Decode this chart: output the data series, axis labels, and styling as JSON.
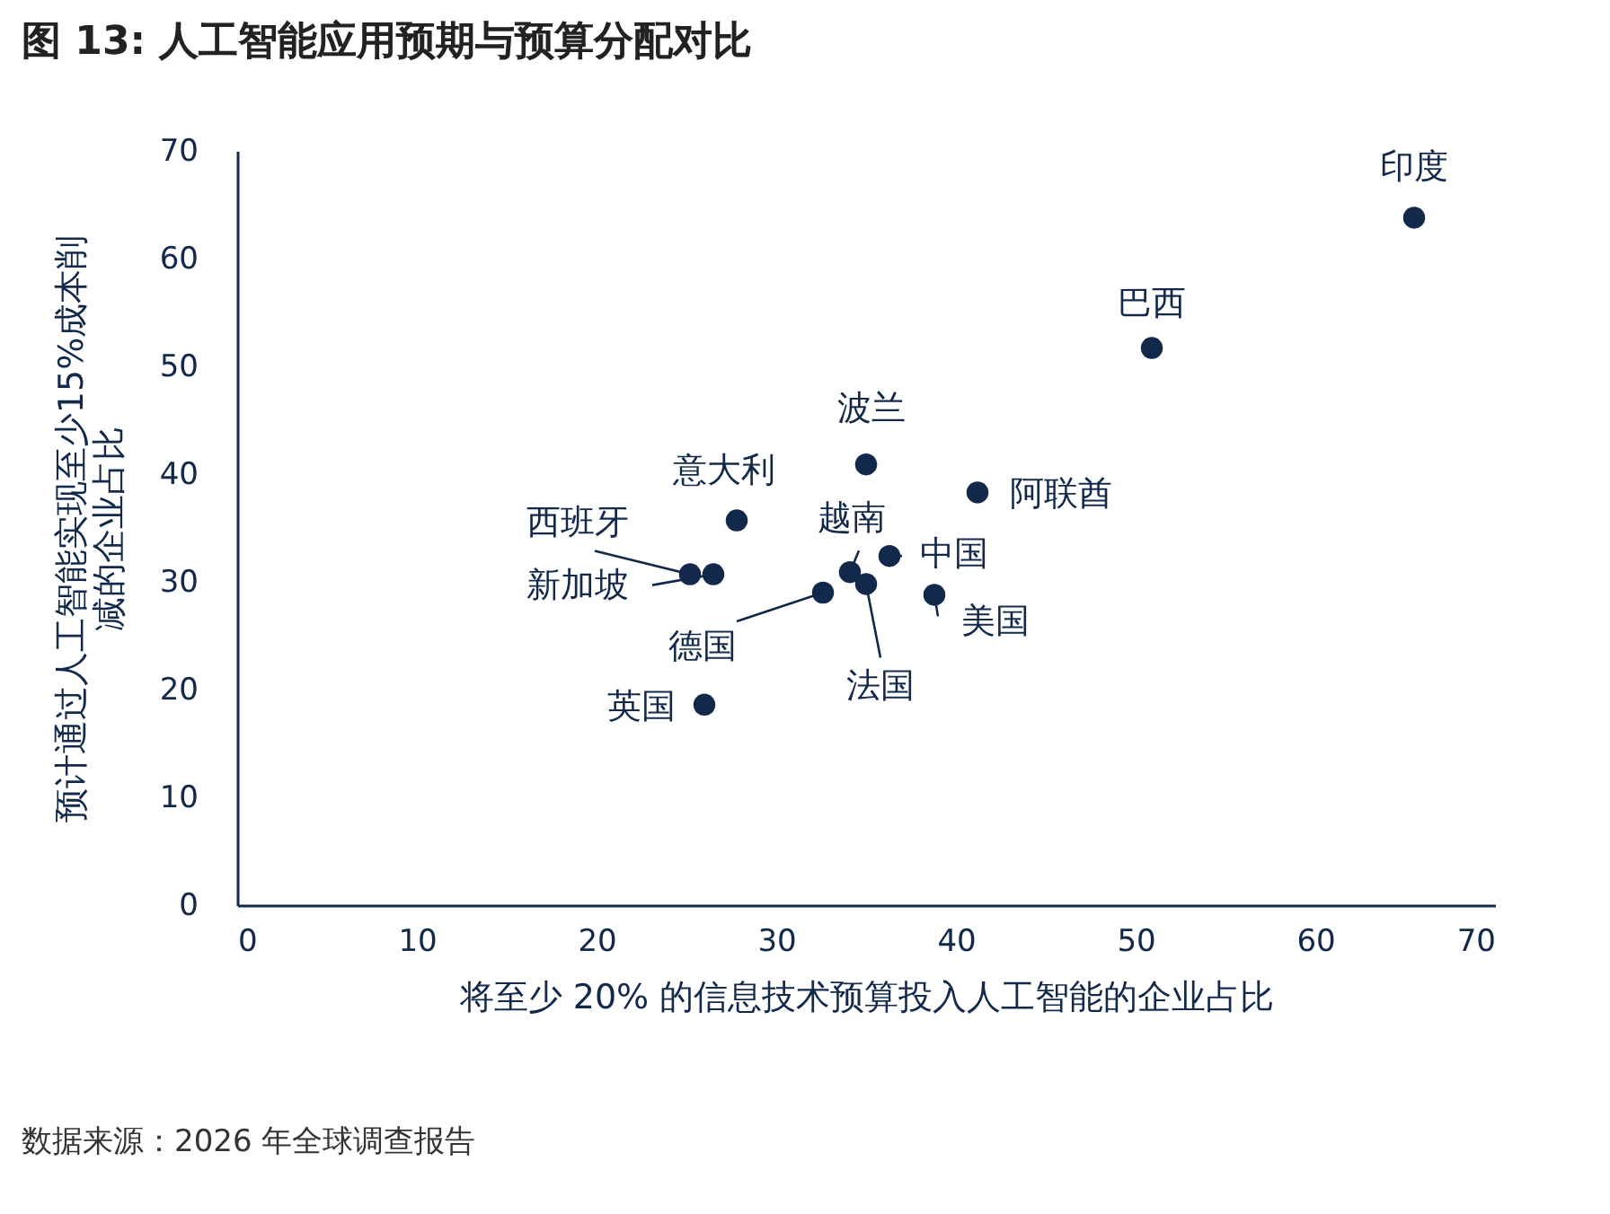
{
  "chart_data": {
    "type": "scatter",
    "title": "图 13: 人工智能应用预期与预算分配对比",
    "xlabel": "将至少 20% 的信息技术预算投入人工智能的企业占比",
    "ylabel": "预计通过人工智能实现至少15%成本削减的企业占比",
    "x": [
      65.5,
      50.9,
      35.0,
      41.2,
      27.8,
      25.2,
      26.5,
      34.1,
      36.3,
      32.6,
      35.0,
      38.8,
      26.0
    ],
    "series": [
      {
        "color": "#13294b",
        "values": [
          63.8,
          51.7,
          40.9,
          38.3,
          35.7,
          30.7,
          30.7,
          30.9,
          32.4,
          29.0,
          29.8,
          28.8,
          18.6
        ]
      }
    ],
    "xlim": [
      0,
      70
    ],
    "xticks": [
      0,
      10,
      20,
      30,
      40,
      50,
      60,
      70
    ],
    "ylim": [
      0,
      70
    ],
    "yticks": [
      0,
      10,
      20,
      30,
      40,
      50,
      60,
      70
    ],
    "grid": false,
    "marker": "circle",
    "annotations": [
      {
        "text": "印度",
        "x": 65.5,
        "y": 63.8
      },
      {
        "text": "巴西",
        "x": 50.9,
        "y": 51.7
      },
      {
        "text": "波兰",
        "x": 35.0,
        "y": 40.9
      },
      {
        "text": "阿联酋",
        "x": 41.2,
        "y": 38.3
      },
      {
        "text": "意大利",
        "x": 27.8,
        "y": 35.7
      },
      {
        "text": "西班牙",
        "x": 25.2,
        "y": 30.7
      },
      {
        "text": "新加坡",
        "x": 26.5,
        "y": 30.7
      },
      {
        "text": "越南",
        "x": 34.1,
        "y": 30.9
      },
      {
        "text": "中国",
        "x": 36.3,
        "y": 32.4
      },
      {
        "text": "德国",
        "x": 32.6,
        "y": 29.0
      },
      {
        "text": "法国",
        "x": 35.0,
        "y": 29.8
      },
      {
        "text": "美国",
        "x": 38.8,
        "y": 28.8
      },
      {
        "text": "英国",
        "x": 26.0,
        "y": 18.6
      },
      "数据来源：2026 年全球调查报告"
    ]
  }
}
